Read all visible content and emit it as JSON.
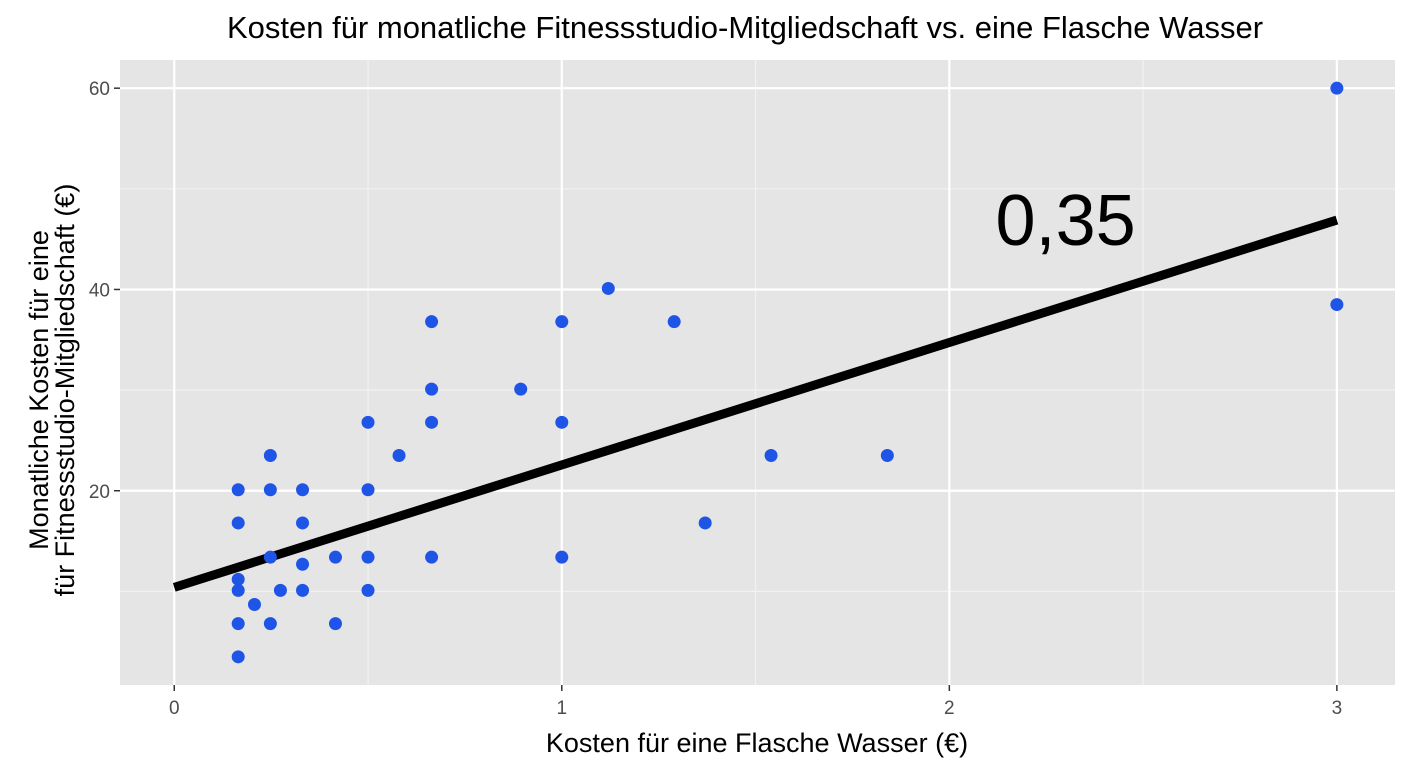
{
  "chart_data": {
    "type": "scatter",
    "title": "Kosten für monatliche Fitnessstudio-Mitgliedschaft vs. eine Flasche Wasser",
    "xlabel": "Kosten für eine Flasche Wasser (€)",
    "ylabel_lines": [
      "Monatliche Kosten für eine",
      "für Fitnessstudio-Mitgliedschaft (€)"
    ],
    "xlim": [
      -0.14,
      3.15
    ],
    "ylim": [
      0.7,
      62.8
    ],
    "x_ticks": [
      0,
      1,
      2,
      3
    ],
    "x_tick_labels": [
      "0",
      "1",
      "2",
      "3"
    ],
    "y_ticks": [
      20,
      40,
      60
    ],
    "y_tick_labels": [
      "20",
      "40",
      "60"
    ],
    "grid": true,
    "point_color": "#1f55e6",
    "points": [
      [
        0.165,
        20.1
      ],
      [
        0.165,
        16.8
      ],
      [
        0.165,
        11.2
      ],
      [
        0.165,
        10.1
      ],
      [
        0.165,
        6.8
      ],
      [
        0.165,
        3.5
      ],
      [
        0.207,
        8.7
      ],
      [
        0.248,
        23.5
      ],
      [
        0.248,
        20.1
      ],
      [
        0.248,
        13.4
      ],
      [
        0.248,
        6.8
      ],
      [
        0.274,
        10.1
      ],
      [
        0.331,
        20.1
      ],
      [
        0.331,
        16.8
      ],
      [
        0.331,
        12.7
      ],
      [
        0.331,
        10.1
      ],
      [
        0.416,
        13.4
      ],
      [
        0.416,
        6.8
      ],
      [
        0.5,
        26.8
      ],
      [
        0.5,
        20.1
      ],
      [
        0.5,
        13.4
      ],
      [
        0.5,
        10.1
      ],
      [
        0.58,
        23.5
      ],
      [
        0.664,
        36.8
      ],
      [
        0.664,
        30.1
      ],
      [
        0.664,
        26.8
      ],
      [
        0.664,
        13.4
      ],
      [
        0.894,
        30.1
      ],
      [
        1.0,
        36.8
      ],
      [
        1.0,
        26.8
      ],
      [
        1.0,
        13.4
      ],
      [
        1.12,
        40.1
      ],
      [
        1.29,
        36.8
      ],
      [
        1.37,
        16.8
      ],
      [
        1.54,
        23.5
      ],
      [
        1.84,
        23.5
      ],
      [
        3.0,
        60.0
      ],
      [
        3.0,
        38.5
      ]
    ],
    "trend_line": {
      "x": [
        0,
        3
      ],
      "y": [
        10.4,
        46.9
      ],
      "color": "#000000"
    },
    "annotation": {
      "text": "0,35",
      "x": 2.3,
      "y": 47
    }
  }
}
